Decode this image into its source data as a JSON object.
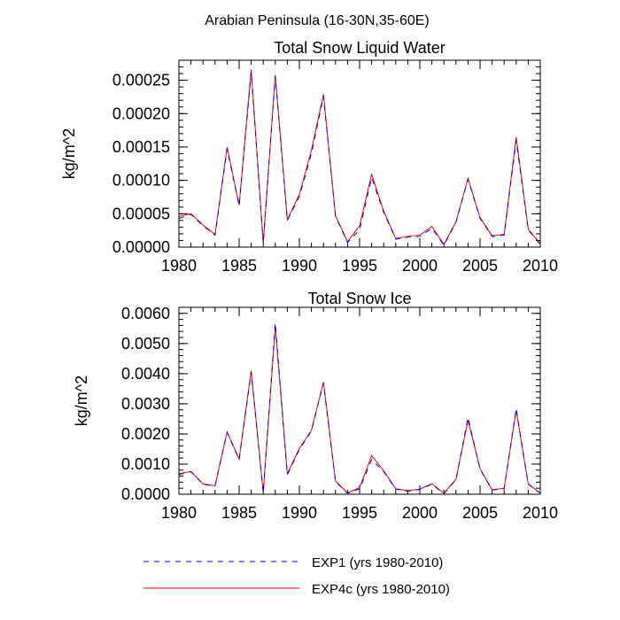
{
  "suptitle": "Arabian Peninsula (16-30N,35-60E)",
  "colors": {
    "exp1": "#0000ff",
    "exp4c": "#ff0000"
  },
  "legend": {
    "exp1_label": "EXP1 (yrs 1980-2010)",
    "exp4c_label": "EXP4c (yrs 1980-2010)"
  },
  "chart_data": [
    {
      "type": "line",
      "title": "Total Snow Liquid Water",
      "xlabel": "",
      "ylabel": "kg/m^2",
      "xlim": [
        1980,
        2010
      ],
      "ylim": [
        0,
        0.00028
      ],
      "xticks": [
        1980,
        1985,
        1990,
        1995,
        2000,
        2005,
        2010
      ],
      "yticks": [
        0.0,
        5e-05,
        0.0001,
        0.00015,
        0.0002,
        0.00025
      ],
      "ytick_labels": [
        "0.00000",
        "0.00005",
        "0.00010",
        "0.00015",
        "0.00020",
        "0.00025"
      ],
      "yminor_step": 1e-05,
      "x": [
        1980,
        1981,
        1982,
        1983,
        1984,
        1985,
        1986,
        1987,
        1988,
        1989,
        1990,
        1991,
        1992,
        1993,
        1994,
        1995,
        1996,
        1997,
        1998,
        1999,
        2000,
        2001,
        2002,
        2003,
        2004,
        2005,
        2006,
        2007,
        2008,
        2009,
        2010
      ],
      "series": [
        {
          "name": "EXP1 (yrs 1980-2010)",
          "values": [
            4.3e-05,
            4.9e-05,
            3.2e-05,
            1.8e-05,
            0.000147,
            6.2e-05,
            0.000262,
            6e-06,
            0.000256,
            4e-05,
            7.6e-05,
            0.00014,
            0.000226,
            4.6e-05,
            7e-06,
            2.6e-05,
            0.000104,
            5.2e-05,
            1.2e-05,
            1.5e-05,
            1.6e-05,
            2.8e-05,
            3e-06,
            3.7e-05,
            0.000102,
            4.3e-05,
            1.6e-05,
            1.8e-05,
            0.00016,
            2.6e-05,
            4e-06
          ]
        },
        {
          "name": "EXP4c (yrs 1980-2010)",
          "values": [
            4.6e-05,
            5e-05,
            3.3e-05,
            1.9e-05,
            0.00015,
            6.3e-05,
            0.000266,
            6e-06,
            0.000258,
            4.1e-05,
            7.9e-05,
            0.000145,
            0.000229,
            4.7e-05,
            8e-06,
            3.2e-05,
            0.000109,
            5.4e-05,
            1.3e-05,
            1.6e-05,
            1.8e-05,
            3.1e-05,
            4e-06,
            3.8e-05,
            0.000103,
            4.4e-05,
            1.7e-05,
            1.9e-05,
            0.000165,
            2.7e-05,
            5e-06
          ]
        }
      ]
    },
    {
      "type": "line",
      "title": "Total Snow Ice",
      "xlabel": "",
      "ylabel": "kg/m^2",
      "xlim": [
        1980,
        2010
      ],
      "ylim": [
        0,
        0.0062
      ],
      "xticks": [
        1980,
        1985,
        1990,
        1995,
        2000,
        2005,
        2010
      ],
      "yticks": [
        0.0,
        0.001,
        0.002,
        0.003,
        0.004,
        0.005,
        0.006
      ],
      "ytick_labels": [
        "0.0000",
        "0.0010",
        "0.0020",
        "0.0030",
        "0.0040",
        "0.0050",
        "0.0060"
      ],
      "yminor_step": 0.0002,
      "x": [
        1980,
        1981,
        1982,
        1983,
        1984,
        1985,
        1986,
        1987,
        1988,
        1989,
        1990,
        1991,
        1992,
        1993,
        1994,
        1995,
        1996,
        1997,
        1998,
        1999,
        2000,
        2001,
        2002,
        2003,
        2004,
        2005,
        2006,
        2007,
        2008,
        2009,
        2010
      ],
      "series": [
        {
          "name": "EXP1 (yrs 1980-2010)",
          "values": [
            0.00065,
            0.00075,
            0.00033,
            0.00027,
            0.00205,
            0.00115,
            0.00405,
            5e-05,
            0.00568,
            0.00065,
            0.00148,
            0.0021,
            0.0037,
            0.00042,
            3e-05,
            0.00018,
            0.00115,
            0.00075,
            0.00017,
            0.0001,
            0.00016,
            0.00033,
            2e-05,
            0.00048,
            0.00255,
            0.00083,
            0.00014,
            0.00018,
            0.00285,
            0.00033,
            3e-05
          ]
        },
        {
          "name": "EXP4c (yrs 1980-2010)",
          "values": [
            0.00068,
            0.00076,
            0.00034,
            0.00028,
            0.00207,
            0.00117,
            0.0041,
            6e-05,
            0.00555,
            0.00068,
            0.00152,
            0.00212,
            0.00372,
            0.00044,
            4e-05,
            0.00022,
            0.00128,
            0.00078,
            0.00018,
            0.00012,
            0.00017,
            0.00035,
            3e-05,
            0.0005,
            0.00245,
            0.00085,
            0.00015,
            0.0002,
            0.00278,
            0.00034,
            4e-05
          ]
        }
      ]
    }
  ]
}
